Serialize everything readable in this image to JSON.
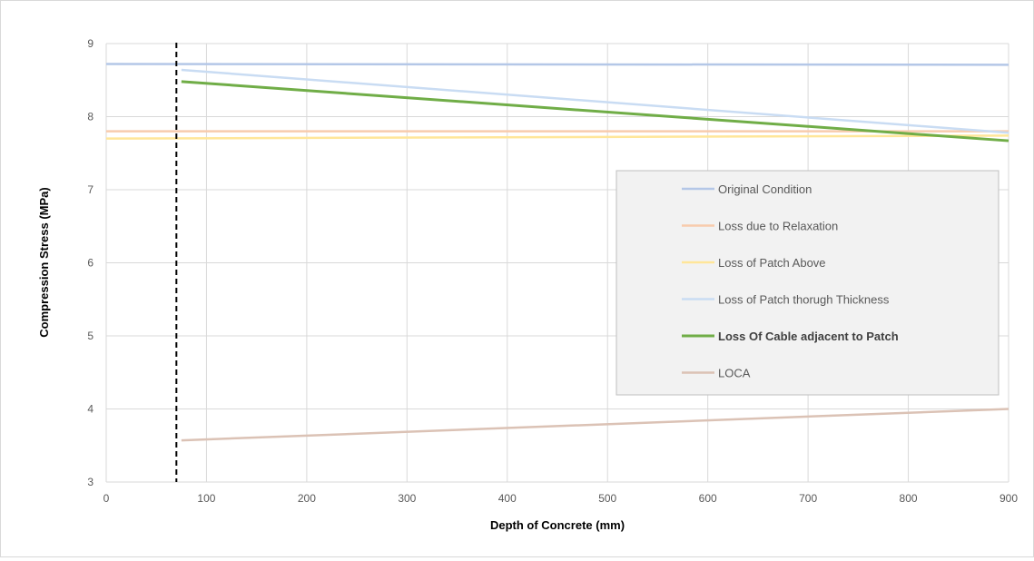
{
  "chart_data": {
    "type": "line",
    "title": "",
    "xlabel": "Depth of Concrete (mm)",
    "ylabel": "Compression Stress (MPa)",
    "xlim": [
      0,
      900
    ],
    "ylim": [
      3,
      9
    ],
    "x_ticks": [
      0,
      100,
      200,
      300,
      400,
      500,
      600,
      700,
      800,
      900
    ],
    "y_ticks": [
      3,
      4,
      5,
      6,
      7,
      8,
      9
    ],
    "grid": true,
    "legend_position": "right",
    "reference_line": {
      "x": 70,
      "style": "dashed",
      "color": "#000000"
    },
    "series": [
      {
        "name": "Original Condition",
        "color": "#b4c7e7",
        "emphasis": false,
        "x": [
          0,
          900
        ],
        "y": [
          8.72,
          8.71
        ]
      },
      {
        "name": "Loss due to Relaxation",
        "color": "#f8cbad",
        "emphasis": false,
        "x": [
          0,
          900
        ],
        "y": [
          7.8,
          7.8
        ]
      },
      {
        "name": "Loss of Patch Above",
        "color": "#ffe699",
        "emphasis": false,
        "x": [
          0,
          900
        ],
        "y": [
          7.7,
          7.74
        ]
      },
      {
        "name": "Loss of Patch thorugh Thickness",
        "color": "#c9dcf3",
        "emphasis": false,
        "x": [
          75,
          900
        ],
        "y": [
          8.64,
          7.78
        ]
      },
      {
        "name": "Loss Of Cable adjacent to Patch",
        "color": "#70ad47",
        "emphasis": true,
        "x": [
          75,
          900
        ],
        "y": [
          8.48,
          7.67
        ]
      },
      {
        "name": "LOCA",
        "color": "#dbc2b5",
        "emphasis": false,
        "x": [
          75,
          900
        ],
        "y": [
          3.57,
          4.0
        ]
      }
    ]
  }
}
